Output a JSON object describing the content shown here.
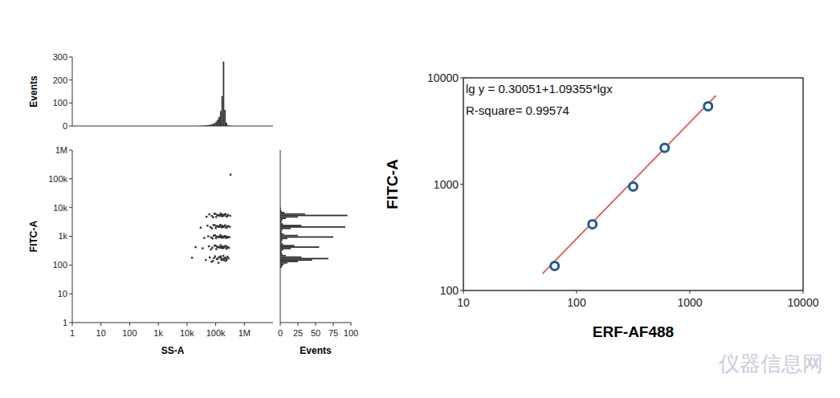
{
  "chart_data": [
    {
      "type": "histogram",
      "y_label": "Events",
      "log": "x",
      "tick_labels": "y",
      "color": "#333333",
      "xlim": [
        1,
        10000000
      ],
      "ylim": [
        0,
        300
      ],
      "yticks": [
        0,
        100,
        200,
        300
      ],
      "bins": [
        25119,
        28184,
        31623,
        35481,
        39811,
        44668,
        50119,
        56234,
        63096,
        70795,
        79433,
        89125,
        100000,
        112202,
        125893,
        141254,
        158489,
        177828,
        199526,
        223872,
        251189,
        281838,
        316228,
        354813,
        398107
      ],
      "values": [
        1,
        1,
        1,
        2,
        2,
        3,
        4,
        5,
        6,
        8,
        10,
        14,
        20,
        28,
        40,
        65,
        130,
        280,
        70,
        15,
        4,
        1,
        1,
        0
      ]
    },
    {
      "type": "scatter",
      "x_label": "SS-A",
      "y_label": "FITC-A",
      "log": true,
      "color": "#333333",
      "marker": "square",
      "xlim": [
        1,
        10000000
      ],
      "ylim": [
        1,
        1000000
      ],
      "xticks": [
        1,
        10,
        100,
        {
          "value": 1000,
          "label": "1k"
        },
        {
          "value": 10000,
          "label": "10k"
        },
        {
          "value": 100000,
          "label": "100k"
        },
        {
          "value": 1000000,
          "label": "1M"
        }
      ],
      "yticks": [
        1,
        10,
        100,
        {
          "value": 1000,
          "label": "1k"
        },
        {
          "value": 10000,
          "label": "10k"
        },
        {
          "value": 100000,
          "label": "100k"
        },
        {
          "value": 1000000,
          "label": "1M"
        }
      ],
      "x": [
        45000,
        62000,
        80000,
        95000,
        110000,
        125000,
        140000,
        155000,
        170000,
        185000,
        200000,
        220000,
        240000,
        260000,
        280000,
        72000,
        88000,
        130000,
        160000,
        190000,
        230000,
        150000,
        115000,
        205000,
        35000,
        58000,
        76000,
        92000,
        105000,
        118000,
        135000,
        148000,
        165000,
        178000,
        195000,
        215000,
        235000,
        255000,
        290000,
        68000,
        99000,
        126000,
        158000,
        186000,
        225000,
        142000,
        112000,
        245000,
        40000,
        55000,
        70000,
        86000,
        102000,
        120000,
        132000,
        146000,
        162000,
        176000,
        198000,
        212000,
        232000,
        262000,
        300000,
        78000,
        95000,
        128000,
        152000,
        182000,
        222000,
        138000,
        108000,
        250000,
        30000,
        52000,
        66000,
        84000,
        100000,
        116000,
        130000,
        144000,
        160000,
        172000,
        192000,
        210000,
        228000,
        268000,
        310000,
        74000,
        92000,
        124000,
        154000,
        180000,
        218000,
        136000,
        106000,
        248000,
        48000,
        60000,
        74000,
        90000,
        104000,
        122000,
        134000,
        150000,
        164000,
        174000,
        196000,
        208000,
        238000,
        270000,
        320000,
        82000,
        97000,
        127000,
        157000,
        188000,
        226000,
        140000,
        112000,
        252000,
        330000,
        15000,
        20000
      ],
      "values": [
        150,
        185,
        140,
        200,
        165,
        120,
        190,
        175,
        155,
        210,
        145,
        180,
        160,
        195,
        170,
        130,
        175,
        185,
        150,
        165,
        140,
        200,
        160,
        175,
        380,
        450,
        400,
        470,
        360,
        430,
        410,
        490,
        390,
        440,
        420,
        460,
        370,
        430,
        400,
        350,
        480,
        420,
        440,
        390,
        450,
        410,
        430,
        395,
        880,
        1000,
        920,
        1050,
        860,
        970,
        940,
        1100,
        900,
        990,
        950,
        1020,
        880,
        960,
        930,
        840,
        1080,
        960,
        1000,
        910,
        980,
        940,
        970,
        900,
        2000,
        2350,
        2100,
        2450,
        1950,
        2250,
        2150,
        2500,
        2050,
        2300,
        2200,
        2400,
        2000,
        2250,
        2150,
        1900,
        2450,
        2200,
        2300,
        2100,
        2350,
        2150,
        2250,
        2050,
        4800,
        5800,
        5100,
        6000,
        4700,
        5500,
        5300,
        6200,
        5000,
        5600,
        5400,
        5900,
        4900,
        5500,
        5200,
        4600,
        6100,
        5400,
        5700,
        5100,
        5800,
        5300,
        5500,
        5000,
        140000,
        180,
        420
      ]
    },
    {
      "type": "histogram",
      "orientation": "horizontal",
      "x_label": "Events",
      "log": "y",
      "tick_labels": "x",
      "color": "#333333",
      "xlim": [
        0,
        100
      ],
      "xticks": [
        0,
        25,
        50,
        75,
        100
      ],
      "ylim": [
        1,
        1000000
      ],
      "bins": [
        79,
        89,
        100,
        112,
        126,
        141,
        158,
        178,
        200,
        224,
        251,
        282,
        316,
        355,
        398,
        447,
        501,
        562,
        631,
        708,
        794,
        891,
        1000,
        1122,
        1259,
        1413,
        1585,
        1778,
        1995,
        2239,
        2512,
        2818,
        3162,
        3548,
        3981,
        4467,
        5012,
        5623,
        6310,
        7079,
        7943,
        8913,
        10000
      ],
      "values": [
        2,
        3,
        5,
        10,
        25,
        45,
        68,
        30,
        8,
        3,
        2,
        2,
        4,
        15,
        55,
        20,
        4,
        2,
        2,
        3,
        10,
        75,
        25,
        5,
        2,
        2,
        3,
        15,
        92,
        30,
        4,
        2,
        2,
        3,
        8,
        25,
        95,
        35,
        6,
        2,
        1,
        1
      ]
    },
    {
      "type": "scatter",
      "x_label": "ERF-AF488",
      "y_label": "FITC-A",
      "log": true,
      "color": "#1f5b99",
      "marker": "circle",
      "xlim": [
        10,
        10000
      ],
      "ylim": [
        100,
        10000
      ],
      "xticks": [
        10,
        100,
        1000,
        10000
      ],
      "yticks": [
        100,
        1000,
        10000
      ],
      "x": [
        64,
        138,
        316,
        600,
        1450
      ],
      "values": [
        170,
        420,
        950,
        2200,
        5400
      ],
      "fit": {
        "type": "line",
        "color": "#e05a50",
        "x": [
          50,
          1700
        ],
        "values": [
          144,
          6810
        ]
      },
      "annotations": [
        "lg y = 0.30051+1.09355*lgx",
        "R-square= 0.99574"
      ]
    }
  ],
  "watermark": "仪器信息网"
}
